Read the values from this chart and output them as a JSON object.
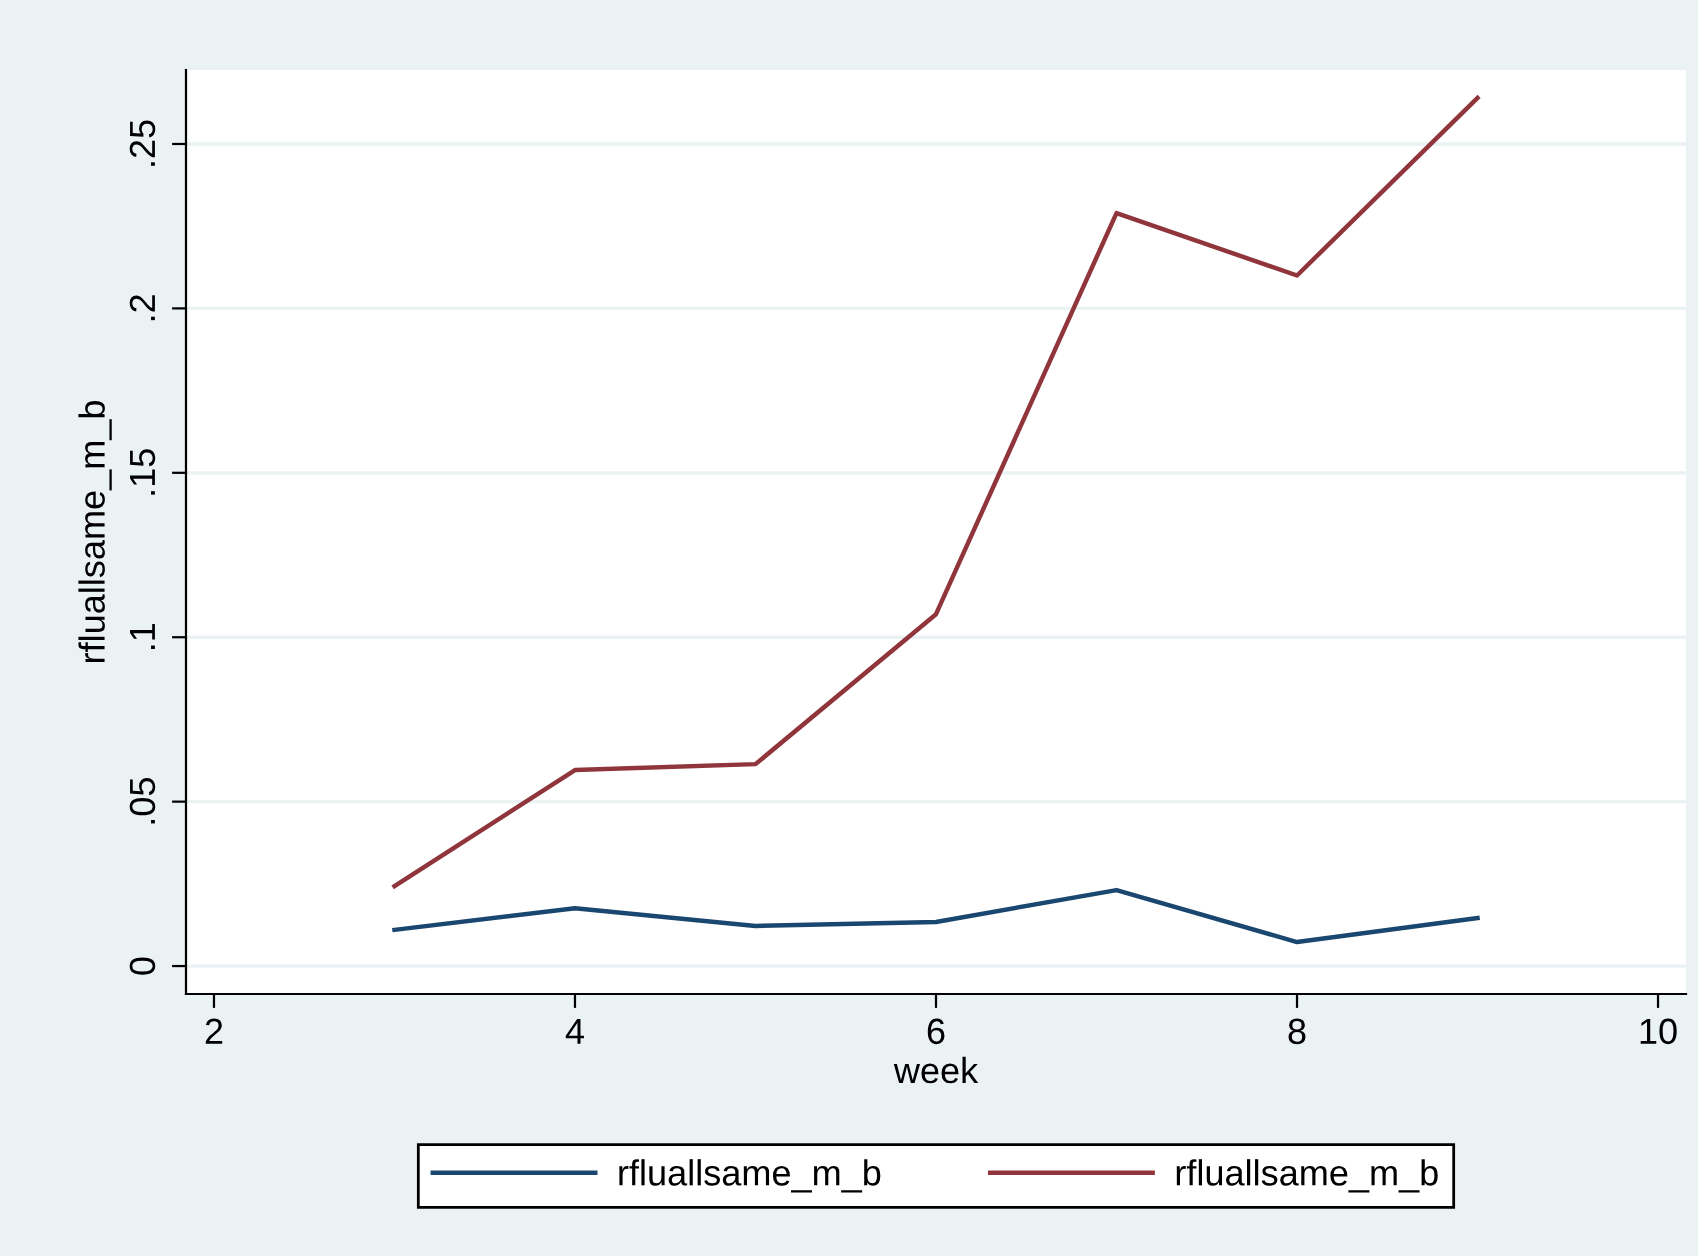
{
  "chart_data": {
    "type": "line",
    "xlabel": "week",
    "ylabel": "rfluallsame_m_b",
    "x": [
      3,
      4,
      5,
      6,
      7,
      8,
      9
    ],
    "series": [
      {
        "name": "rfluallsame_m_b",
        "color": "#1a476f",
        "values": [
          0.011,
          0.0176,
          0.0122,
          0.0134,
          0.0231,
          0.0073,
          0.0146
        ]
      },
      {
        "name": "rfluallsame_m_b",
        "color": "#90353b",
        "values": [
          0.0243,
          0.0596,
          0.0614,
          0.107,
          0.229,
          0.21,
          0.264
        ]
      }
    ],
    "xlim": [
      1.845,
      10.155
    ],
    "xticks": [
      2,
      4,
      6,
      8,
      10
    ],
    "ylim": [
      -0.0085,
      0.2725
    ],
    "yticks": [
      0,
      {
        "value": 0.05,
        "label": ".05"
      },
      {
        "value": 0.1,
        "label": ".1"
      },
      {
        "value": 0.15,
        "label": ".15"
      },
      {
        "value": 0.2,
        "label": ".2"
      },
      {
        "value": 0.25,
        "label": ".25"
      }
    ],
    "grid": "y",
    "legend": "bottom",
    "marker": "none",
    "line_style": "solid"
  }
}
